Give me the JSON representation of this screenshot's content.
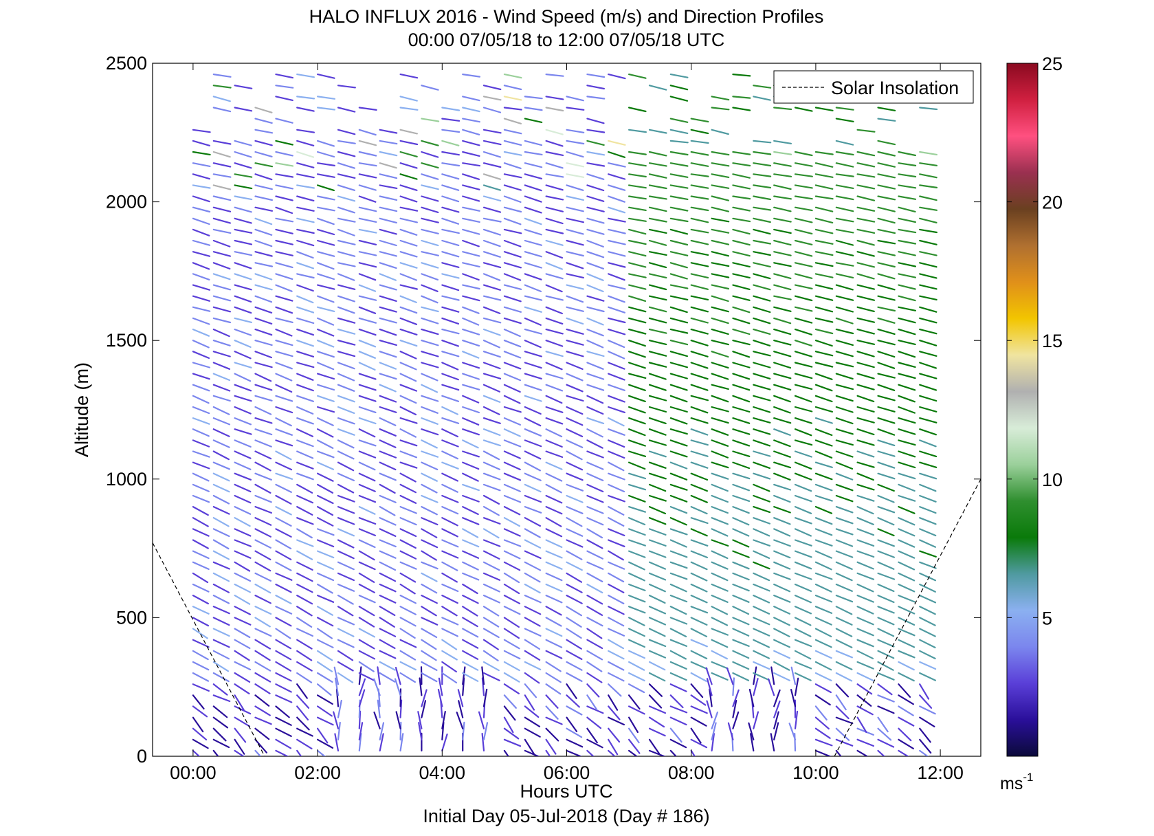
{
  "chart_data": {
    "type": "quiver",
    "title": "HALO INFLUX 2016 - Wind Speed (m/s) and Direction Profiles",
    "subtitle": "00:00 07/05/18 to 12:00 07/05/18  UTC",
    "xlabel": "Hours UTC",
    "ylabel": "Altitude (m)",
    "footer": "Initial Day 05-Jul-2018 (Day # 186)",
    "xlim": [
      -0.65,
      12.65
    ],
    "ylim": [
      0,
      2500
    ],
    "xticks": [
      0,
      2,
      4,
      6,
      8,
      10,
      12
    ],
    "xtick_labels": [
      "00:00",
      "02:00",
      "04:00",
      "06:00",
      "08:00",
      "10:00",
      "12:00"
    ],
    "yticks": [
      0,
      500,
      1000,
      1500,
      2000,
      2500
    ],
    "ytick_labels": [
      "0",
      "500",
      "1000",
      "1500",
      "2000",
      "2500"
    ],
    "legend": {
      "placement": "top-right",
      "entries": [
        "Solar Insolation"
      ]
    },
    "grid": false,
    "colorbar": {
      "range": [
        0,
        25
      ],
      "ticks": [
        5,
        10,
        15,
        20,
        25
      ],
      "tick_labels": [
        "5",
        "10",
        "15",
        "20",
        "25"
      ],
      "unit_label": "ms",
      "unit_exponent": "-1",
      "colors": [
        "#0b0a3a",
        "#2a0f9a",
        "#5a3fd8",
        "#7b86ee",
        "#8bb0f0",
        "#4f9aa0",
        "#0a7a0a",
        "#2f8f2f",
        "#9bd09b",
        "#d8ecd8",
        "#b0b0b0",
        "#f0e4a0",
        "#f2c500",
        "#e0901a",
        "#b07030",
        "#6a4020",
        "#9a3050",
        "#ff5080",
        "#d02040",
        "#8a0a20"
      ]
    },
    "solar_insolation": {
      "left_segment": [
        [
          -0.65,
          770
        ],
        [
          1.15,
          0
        ]
      ],
      "right_segment": [
        [
          10.3,
          0
        ],
        [
          12.65,
          1000
        ]
      ]
    },
    "wind_profile_times_hours": [
      0.0,
      0.33,
      0.67,
      1.0,
      1.33,
      1.67,
      2.0,
      2.33,
      2.67,
      3.0,
      3.33,
      3.67,
      4.0,
      4.33,
      4.67,
      5.0,
      5.33,
      5.67,
      6.0,
      6.33,
      6.67,
      7.0,
      7.33,
      7.67,
      8.0,
      8.33,
      8.67,
      9.0,
      9.33,
      9.67,
      10.0,
      10.33,
      10.67,
      11.0,
      11.33,
      11.67
    ],
    "wind_profile_note_speed_regimes": [
      {
        "hours": [
          0,
          6.8
        ],
        "altitude_m": [
          300,
          2200
        ],
        "speed_ms": [
          2,
          5
        ]
      },
      {
        "hours": [
          7.0,
          11.8
        ],
        "altitude_m": [
          600,
          2200
        ],
        "speed_ms": [
          5,
          9
        ]
      },
      {
        "hours": [
          0,
          11.8
        ],
        "altitude_m": [
          0,
          300
        ],
        "speed_ms": [
          1,
          4
        ]
      }
    ]
  }
}
